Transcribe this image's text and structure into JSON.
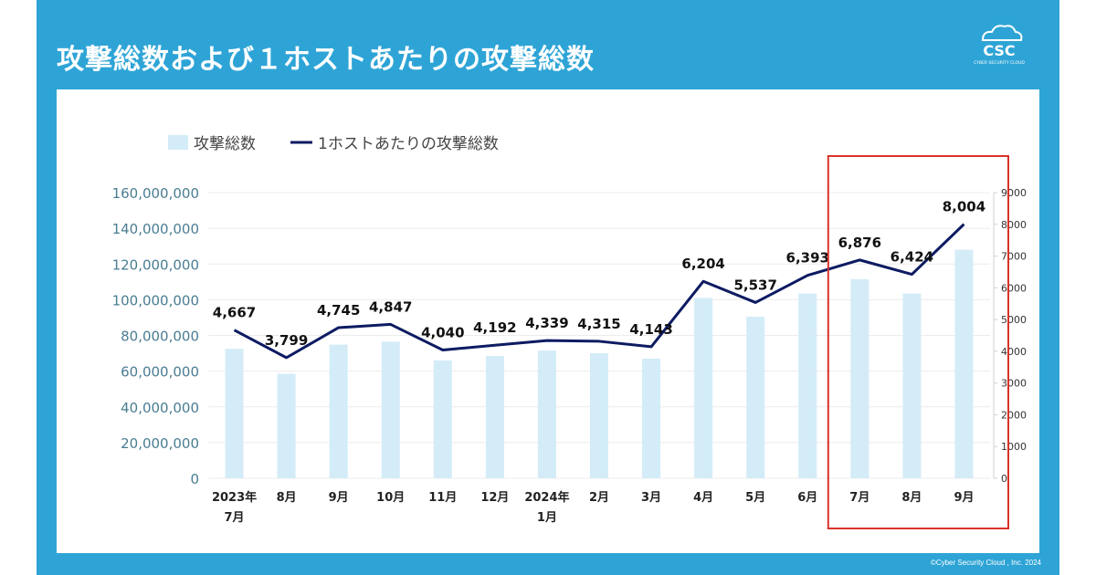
{
  "slide": {
    "title": "攻撃総数および１ホストあたりの攻撃総数",
    "logo_text": "CSC",
    "logo_subtext": "CYBER SECURITY CLOUD",
    "copyright": "©Cyber Security Cloud , Inc. 2024",
    "colors": {
      "background": "#2ea4d6",
      "panel": "#ffffff",
      "highlight": "#d9322b"
    }
  },
  "chart_data": {
    "type": "bar",
    "categories": [
      [
        "2023年",
        "7月"
      ],
      [
        "8月"
      ],
      [
        "9月"
      ],
      [
        "10月"
      ],
      [
        "11月"
      ],
      [
        "12月"
      ],
      [
        "2024年",
        "1月"
      ],
      [
        "2月"
      ],
      [
        "3月"
      ],
      [
        "4月"
      ],
      [
        "5月"
      ],
      [
        "6月"
      ],
      [
        "7月"
      ],
      [
        "8月"
      ],
      [
        "9月"
      ]
    ],
    "series": [
      {
        "name": "攻撃総数",
        "kind": "bar",
        "axis": "left",
        "color": "#d4ecf8",
        "values": [
          72500000,
          58500000,
          74800000,
          76500000,
          66000000,
          68500000,
          71500000,
          70000000,
          67000000,
          101000000,
          90500000,
          103500000,
          111500000,
          103500000,
          128000000
        ]
      },
      {
        "name": "1ホストあたりの攻撃総数",
        "kind": "line",
        "axis": "right",
        "color": "#0d1b62",
        "values": [
          4667,
          3799,
          4745,
          4847,
          4040,
          4192,
          4339,
          4315,
          4143,
          6204,
          5537,
          6393,
          6876,
          6424,
          8004
        ],
        "data_labels": [
          "4,667",
          "3,799",
          "4,745",
          "4,847",
          "4,040",
          "4,192",
          "4,339",
          "4,315",
          "4,143",
          "6,204",
          "5,537",
          "6,393",
          "6,876",
          "6,424",
          "8,004"
        ]
      }
    ],
    "y_left": {
      "range": [
        0,
        160000000
      ],
      "ticks": [
        0,
        20000000,
        40000000,
        60000000,
        80000000,
        100000000,
        120000000,
        140000000,
        160000000
      ],
      "tick_labels": [
        "0",
        "20,000,000",
        "40,000,000",
        "60,000,000",
        "80,000,000",
        "100,000,000",
        "120,000,000",
        "140,000,000",
        "160,000,000"
      ]
    },
    "y_right": {
      "range": [
        0,
        9000
      ],
      "ticks": [
        0,
        1000,
        2000,
        3000,
        4000,
        5000,
        6000,
        7000,
        8000,
        9000
      ],
      "tick_labels": [
        "0",
        "1000",
        "2000",
        "3000",
        "4000",
        "5000",
        "6000",
        "7000",
        "8000",
        "9000"
      ]
    },
    "legend": "top-left",
    "grid": true,
    "highlight_categories": [
      "7月",
      "8月",
      "9月"
    ]
  }
}
